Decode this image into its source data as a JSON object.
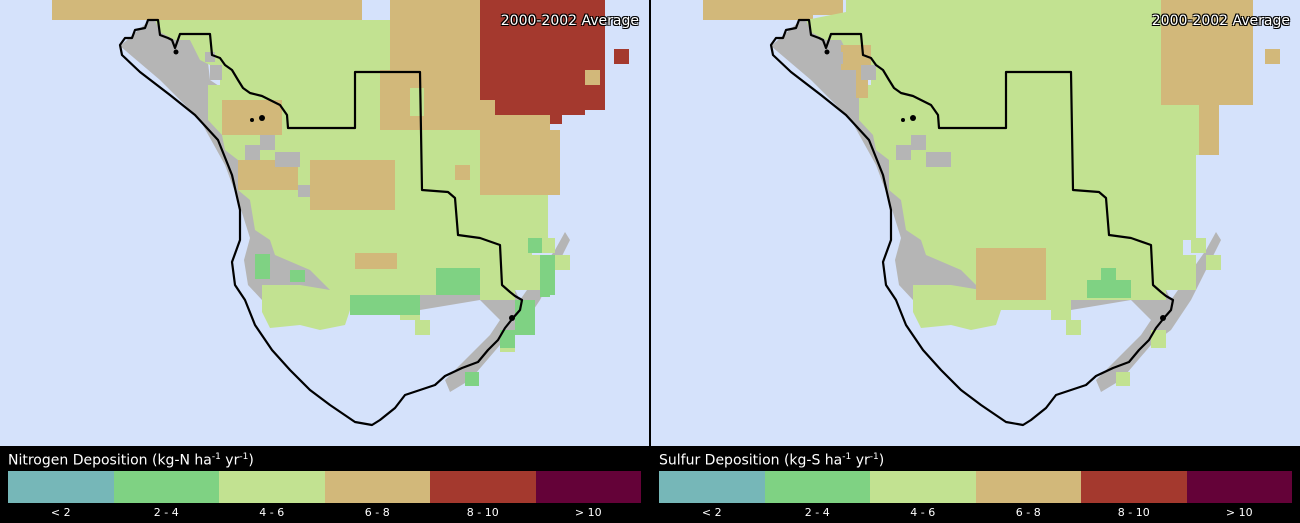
{
  "panels": {
    "nitrogen": {
      "average_label": "2000-2002 Average",
      "legend_title_main": "Nitrogen Deposition (kg-N ha",
      "legend_title_exp1": "-1",
      "legend_title_mid": " yr",
      "legend_title_exp2": "-1",
      "legend_title_end": ")"
    },
    "sulfur": {
      "average_label": "2000-2002 Average",
      "legend_title_main": "Sulfur Deposition (kg-S ha",
      "legend_title_exp1": "-1",
      "legend_title_mid": " yr",
      "legend_title_exp2": "-1",
      "legend_title_end": ")"
    }
  },
  "legend": {
    "classes": [
      {
        "label": "< 2",
        "color": "#76b7b8"
      },
      {
        "label": "2 - 4",
        "color": "#7fd283"
      },
      {
        "label": "4 - 6",
        "color": "#c2e291"
      },
      {
        "label": "6 - 8",
        "color": "#d2b87a"
      },
      {
        "label": "8 - 10",
        "color": "#a4392e"
      },
      {
        "label": "> 10",
        "color": "#640238"
      }
    ]
  },
  "colors": {
    "water": "#d5e2fb",
    "no_data": "#b5b5b5",
    "boundary": "#000000"
  }
}
